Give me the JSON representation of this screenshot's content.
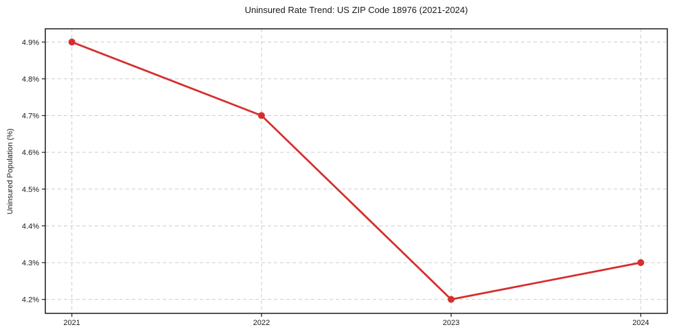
{
  "chart_data": {
    "type": "line",
    "title": "Uninsured Rate Trend: US ZIP Code 18976 (2021-2024)",
    "xlabel": "",
    "ylabel": "Uninsured Population (%)",
    "x": [
      2021,
      2022,
      2023,
      2024
    ],
    "values": [
      4.9,
      4.7,
      4.2,
      4.3
    ],
    "xticks": [
      {
        "value": 2021,
        "label": "2021"
      },
      {
        "value": 2022,
        "label": "2022"
      },
      {
        "value": 2023,
        "label": "2023"
      },
      {
        "value": 2024,
        "label": "2024"
      }
    ],
    "yticks": [
      {
        "value": 4.2,
        "label": "4.2%"
      },
      {
        "value": 4.3,
        "label": "4.3%"
      },
      {
        "value": 4.4,
        "label": "4.4%"
      },
      {
        "value": 4.5,
        "label": "4.5%"
      },
      {
        "value": 4.6,
        "label": "4.6%"
      },
      {
        "value": 4.7,
        "label": "4.7%"
      },
      {
        "value": 4.8,
        "label": "4.8%"
      },
      {
        "value": 4.9,
        "label": "4.9%"
      }
    ],
    "xlim": [
      2020.86,
      2024.14
    ],
    "ylim": [
      4.162,
      4.936
    ],
    "grid": true,
    "grid_style": "dashed",
    "legend_position": "none",
    "marker": "circle",
    "marker_size": 5,
    "line_width": 2.8,
    "colors": {
      "line": "#d62e2e",
      "grid": "#cccccc",
      "axis": "#1a1a1a",
      "text": "#1a1a1a",
      "background": "#ffffff"
    }
  }
}
